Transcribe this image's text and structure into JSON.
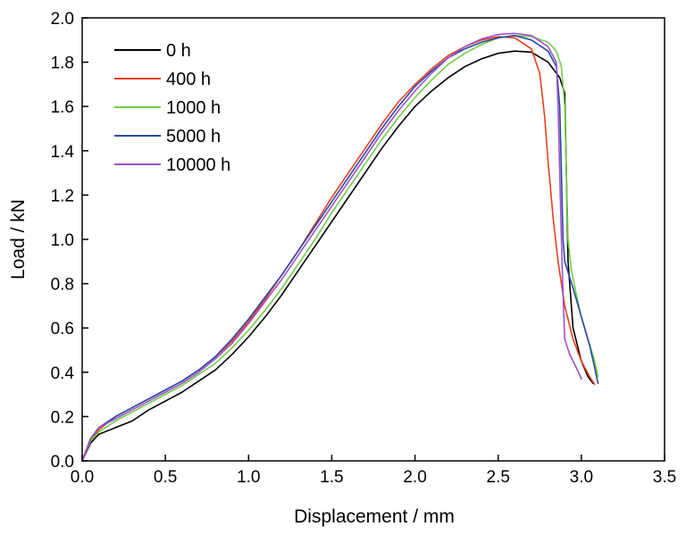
{
  "chart_data": {
    "type": "line",
    "title": "",
    "xlabel": "Displacement / mm",
    "ylabel": "Load / kN",
    "xlim": [
      0,
      3.5
    ],
    "ylim": [
      0,
      2.0
    ],
    "x_ticks": [
      "0.0",
      "0.5",
      "1.0",
      "1.5",
      "2.0",
      "2.5",
      "3.0",
      "3.5"
    ],
    "y_ticks": [
      "0.0",
      "0.2",
      "0.4",
      "0.6",
      "0.8",
      "1.0",
      "1.2",
      "1.4",
      "1.6",
      "1.8",
      "2.0"
    ],
    "grid": false,
    "legend_position": "top-left",
    "series": [
      {
        "name": "0 h",
        "color": "#000000",
        "points": [
          [
            0,
            0
          ],
          [
            0.05,
            0.08
          ],
          [
            0.1,
            0.12
          ],
          [
            0.2,
            0.15
          ],
          [
            0.3,
            0.18
          ],
          [
            0.4,
            0.23
          ],
          [
            0.5,
            0.27
          ],
          [
            0.6,
            0.31
          ],
          [
            0.7,
            0.36
          ],
          [
            0.8,
            0.41
          ],
          [
            0.9,
            0.48
          ],
          [
            1.0,
            0.56
          ],
          [
            1.1,
            0.65
          ],
          [
            1.2,
            0.75
          ],
          [
            1.3,
            0.86
          ],
          [
            1.4,
            0.97
          ],
          [
            1.5,
            1.08
          ],
          [
            1.6,
            1.19
          ],
          [
            1.7,
            1.3
          ],
          [
            1.8,
            1.41
          ],
          [
            1.9,
            1.51
          ],
          [
            2.0,
            1.6
          ],
          [
            2.1,
            1.67
          ],
          [
            2.2,
            1.73
          ],
          [
            2.3,
            1.78
          ],
          [
            2.4,
            1.815
          ],
          [
            2.5,
            1.84
          ],
          [
            2.6,
            1.85
          ],
          [
            2.7,
            1.845
          ],
          [
            2.8,
            1.8
          ],
          [
            2.87,
            1.73
          ],
          [
            2.9,
            1.66
          ],
          [
            2.91,
            1.3
          ],
          [
            2.92,
            0.9
          ],
          [
            2.95,
            0.6
          ],
          [
            3.0,
            0.45
          ],
          [
            3.04,
            0.38
          ],
          [
            3.07,
            0.35
          ]
        ]
      },
      {
        "name": "400 h",
        "color": "#e8401c",
        "points": [
          [
            0,
            0
          ],
          [
            0.05,
            0.09
          ],
          [
            0.1,
            0.14
          ],
          [
            0.2,
            0.2
          ],
          [
            0.3,
            0.24
          ],
          [
            0.4,
            0.28
          ],
          [
            0.5,
            0.32
          ],
          [
            0.6,
            0.36
          ],
          [
            0.7,
            0.41
          ],
          [
            0.8,
            0.47
          ],
          [
            0.9,
            0.54
          ],
          [
            1.0,
            0.63
          ],
          [
            1.1,
            0.73
          ],
          [
            1.2,
            0.84
          ],
          [
            1.3,
            0.95
          ],
          [
            1.4,
            1.07
          ],
          [
            1.5,
            1.19
          ],
          [
            1.6,
            1.3
          ],
          [
            1.7,
            1.41
          ],
          [
            1.8,
            1.52
          ],
          [
            1.9,
            1.62
          ],
          [
            2.0,
            1.7
          ],
          [
            2.1,
            1.77
          ],
          [
            2.2,
            1.83
          ],
          [
            2.3,
            1.87
          ],
          [
            2.4,
            1.9
          ],
          [
            2.5,
            1.915
          ],
          [
            2.6,
            1.91
          ],
          [
            2.7,
            1.86
          ],
          [
            2.75,
            1.75
          ],
          [
            2.78,
            1.55
          ],
          [
            2.8,
            1.35
          ],
          [
            2.83,
            1.1
          ],
          [
            2.86,
            0.9
          ],
          [
            2.9,
            0.7
          ],
          [
            2.95,
            0.55
          ],
          [
            3.0,
            0.45
          ],
          [
            3.05,
            0.38
          ],
          [
            3.08,
            0.345
          ]
        ]
      },
      {
        "name": "1000 h",
        "color": "#6ecf45",
        "points": [
          [
            0,
            0
          ],
          [
            0.05,
            0.09
          ],
          [
            0.1,
            0.13
          ],
          [
            0.2,
            0.18
          ],
          [
            0.3,
            0.22
          ],
          [
            0.4,
            0.26
          ],
          [
            0.5,
            0.3
          ],
          [
            0.6,
            0.34
          ],
          [
            0.7,
            0.39
          ],
          [
            0.8,
            0.44
          ],
          [
            0.9,
            0.51
          ],
          [
            1.0,
            0.59
          ],
          [
            1.1,
            0.68
          ],
          [
            1.2,
            0.78
          ],
          [
            1.3,
            0.89
          ],
          [
            1.4,
            1.0
          ],
          [
            1.5,
            1.12
          ],
          [
            1.6,
            1.23
          ],
          [
            1.7,
            1.34
          ],
          [
            1.8,
            1.45
          ],
          [
            1.9,
            1.55
          ],
          [
            2.0,
            1.64
          ],
          [
            2.1,
            1.72
          ],
          [
            2.2,
            1.79
          ],
          [
            2.3,
            1.84
          ],
          [
            2.4,
            1.88
          ],
          [
            2.5,
            1.91
          ],
          [
            2.6,
            1.92
          ],
          [
            2.7,
            1.915
          ],
          [
            2.8,
            1.89
          ],
          [
            2.85,
            1.85
          ],
          [
            2.88,
            1.78
          ],
          [
            2.9,
            1.6
          ],
          [
            2.91,
            1.3
          ],
          [
            2.92,
            1.0
          ],
          [
            2.94,
            0.86
          ],
          [
            2.97,
            0.75
          ],
          [
            3.0,
            0.65
          ],
          [
            3.04,
            0.55
          ],
          [
            3.08,
            0.45
          ],
          [
            3.1,
            0.38
          ]
        ]
      },
      {
        "name": "5000 h",
        "color": "#2a48a8",
        "points": [
          [
            0,
            0
          ],
          [
            0.05,
            0.1
          ],
          [
            0.1,
            0.15
          ],
          [
            0.2,
            0.2
          ],
          [
            0.3,
            0.24
          ],
          [
            0.4,
            0.28
          ],
          [
            0.5,
            0.32
          ],
          [
            0.6,
            0.36
          ],
          [
            0.7,
            0.41
          ],
          [
            0.8,
            0.47
          ],
          [
            0.9,
            0.55
          ],
          [
            1.0,
            0.64
          ],
          [
            1.1,
            0.74
          ],
          [
            1.2,
            0.84
          ],
          [
            1.3,
            0.95
          ],
          [
            1.4,
            1.06
          ],
          [
            1.5,
            1.17
          ],
          [
            1.6,
            1.28
          ],
          [
            1.7,
            1.39
          ],
          [
            1.8,
            1.5
          ],
          [
            1.9,
            1.6
          ],
          [
            2.0,
            1.69
          ],
          [
            2.1,
            1.76
          ],
          [
            2.2,
            1.82
          ],
          [
            2.3,
            1.86
          ],
          [
            2.4,
            1.89
          ],
          [
            2.5,
            1.91
          ],
          [
            2.6,
            1.92
          ],
          [
            2.7,
            1.9
          ],
          [
            2.8,
            1.85
          ],
          [
            2.85,
            1.78
          ],
          [
            2.87,
            1.6
          ],
          [
            2.88,
            1.3
          ],
          [
            2.89,
            1.0
          ],
          [
            2.9,
            0.9
          ],
          [
            2.95,
            0.78
          ],
          [
            3.0,
            0.65
          ],
          [
            3.05,
            0.52
          ],
          [
            3.08,
            0.42
          ],
          [
            3.1,
            0.35
          ]
        ]
      },
      {
        "name": "10000 h",
        "color": "#a050c8",
        "points": [
          [
            0,
            0
          ],
          [
            0.05,
            0.1
          ],
          [
            0.1,
            0.15
          ],
          [
            0.2,
            0.19
          ],
          [
            0.3,
            0.23
          ],
          [
            0.4,
            0.27
          ],
          [
            0.5,
            0.31
          ],
          [
            0.6,
            0.35
          ],
          [
            0.7,
            0.4
          ],
          [
            0.8,
            0.46
          ],
          [
            0.9,
            0.53
          ],
          [
            1.0,
            0.62
          ],
          [
            1.1,
            0.72
          ],
          [
            1.2,
            0.82
          ],
          [
            1.3,
            0.93
          ],
          [
            1.4,
            1.04
          ],
          [
            1.5,
            1.15
          ],
          [
            1.6,
            1.26
          ],
          [
            1.7,
            1.37
          ],
          [
            1.8,
            1.48
          ],
          [
            1.9,
            1.58
          ],
          [
            2.0,
            1.67
          ],
          [
            2.1,
            1.75
          ],
          [
            2.2,
            1.82
          ],
          [
            2.3,
            1.87
          ],
          [
            2.4,
            1.905
          ],
          [
            2.5,
            1.925
          ],
          [
            2.6,
            1.93
          ],
          [
            2.7,
            1.92
          ],
          [
            2.8,
            1.87
          ],
          [
            2.85,
            1.8
          ],
          [
            2.86,
            1.6
          ],
          [
            2.87,
            1.3
          ],
          [
            2.88,
            1.0
          ],
          [
            2.89,
            0.75
          ],
          [
            2.9,
            0.55
          ],
          [
            2.93,
            0.48
          ],
          [
            2.97,
            0.42
          ],
          [
            3.0,
            0.37
          ]
        ]
      }
    ]
  }
}
